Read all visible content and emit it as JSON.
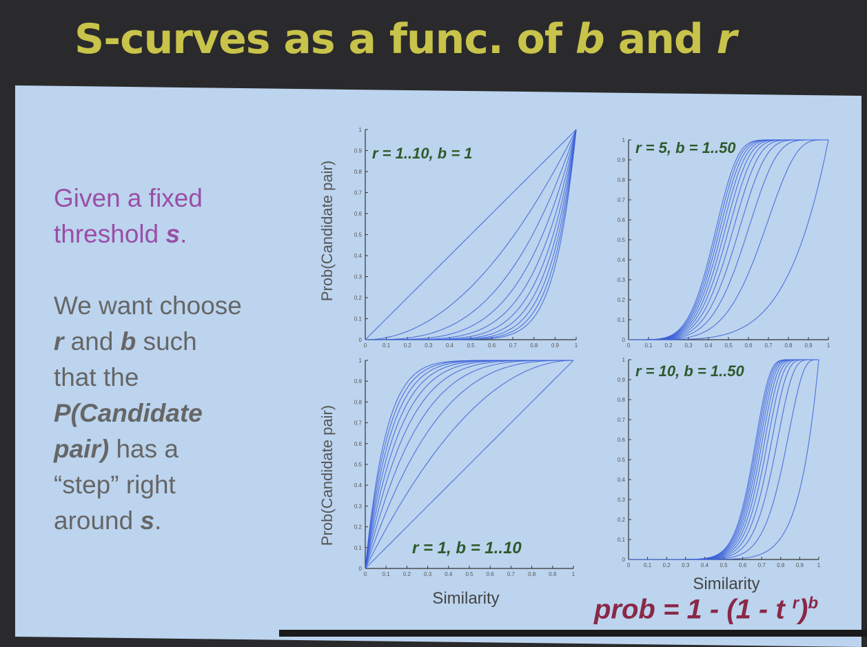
{
  "slide": {
    "title_prefix": "S-curves as a func. of ",
    "title_b": "b",
    "title_and": " and ",
    "title_r": "r"
  },
  "left_text": {
    "line1": "Given a fixed",
    "line2_pre": "threshold ",
    "line2_s": "s",
    "line2_post": ".",
    "para2_l1": "We want choose",
    "para2_l2_r": "r",
    "para2_l2_mid": " and ",
    "para2_l2_b": "b",
    "para2_l2_post": " such",
    "para2_l3": "that the",
    "para2_l4": "P(Candidate",
    "para2_l5_pre": "pair)",
    "para2_l5_post": " has a",
    "para2_l6": "“step” right",
    "para2_l7_pre": "around ",
    "para2_l7_s": "s",
    "para2_l7_post": "."
  },
  "formula": {
    "text": "prob = 1 - (1 - t ",
    "sup_r": "r",
    "close": ")",
    "sup_b": "b"
  },
  "colors": {
    "curve": "#3a5fd8",
    "annotation": "#2d5a2b",
    "title": "#c8c34a",
    "formula": "#8a2848"
  },
  "chart_data": [
    {
      "type": "line",
      "annotation": "r = 1..10, b = 1",
      "ylabel": "Prob(Candidate pair)",
      "xlabel": "",
      "formula": "1-(1-t^r)^b",
      "r": [
        1,
        2,
        3,
        4,
        5,
        6,
        7,
        8,
        9,
        10
      ],
      "b": [
        1
      ],
      "xlim": [
        0,
        1
      ],
      "ylim": [
        0,
        1
      ],
      "x_ticks": [
        "0",
        "0.1",
        "0.2",
        "0.3",
        "0.4",
        "0.5",
        "0.6",
        "0.7",
        "0.8",
        "0.9",
        "1"
      ],
      "y_ticks": [
        "0",
        "0.1",
        "0.2",
        "0.3",
        "0.4",
        "0.5",
        "0.6",
        "0.7",
        "0.8",
        "0.9",
        "1"
      ]
    },
    {
      "type": "line",
      "annotation": "r = 5, b = 1..50",
      "ylabel": "",
      "xlabel": "",
      "formula": "1-(1-t^r)^b",
      "r": [
        5
      ],
      "b": [
        1,
        5,
        10,
        15,
        20,
        25,
        30,
        35,
        40,
        45,
        50
      ],
      "xlim": [
        0,
        1
      ],
      "ylim": [
        0,
        1
      ],
      "x_ticks": [
        "0",
        "0.1",
        "0.2",
        "0.3",
        "0.4",
        "0.5",
        "0.6",
        "0.7",
        "0.8",
        "0.9",
        "1"
      ],
      "y_ticks": [
        "0",
        "0.1",
        "0.2",
        "0.3",
        "0.4",
        "0.5",
        "0.6",
        "0.7",
        "0.8",
        "0.9",
        "1"
      ]
    },
    {
      "type": "line",
      "annotation": "r = 1, b = 1..10",
      "ylabel": "Prob(Candidate pair)",
      "xlabel": "Similarity",
      "formula": "1-(1-t^r)^b",
      "r": [
        1
      ],
      "b": [
        1,
        2,
        3,
        4,
        5,
        6,
        7,
        8,
        9,
        10
      ],
      "xlim": [
        0,
        1
      ],
      "ylim": [
        0,
        1
      ],
      "x_ticks": [
        "0",
        "0.1",
        "0.2",
        "0.3",
        "0.4",
        "0.5",
        "0.6",
        "0.7",
        "0.8",
        "0.9",
        "1"
      ],
      "y_ticks": [
        "0",
        "0.1",
        "0.2",
        "0.3",
        "0.4",
        "0.5",
        "0.6",
        "0.7",
        "0.8",
        "0.9",
        "1"
      ]
    },
    {
      "type": "line",
      "annotation": "r = 10, b = 1..50",
      "ylabel": "",
      "xlabel": "Similarity",
      "formula": "1-(1-t^r)^b",
      "r": [
        10
      ],
      "b": [
        1,
        5,
        10,
        15,
        20,
        25,
        30,
        35,
        40,
        45,
        50
      ],
      "xlim": [
        0,
        1
      ],
      "ylim": [
        0,
        1
      ],
      "x_ticks": [
        "0",
        "0.1",
        "0.2",
        "0.3",
        "0.4",
        "0.5",
        "0.6",
        "0.7",
        "0.8",
        "0.9",
        "1"
      ],
      "y_ticks": [
        "0",
        "0.1",
        "0.2",
        "0.3",
        "0.4",
        "0.5",
        "0.6",
        "0.7",
        "0.8",
        "0.9",
        "1"
      ]
    }
  ]
}
